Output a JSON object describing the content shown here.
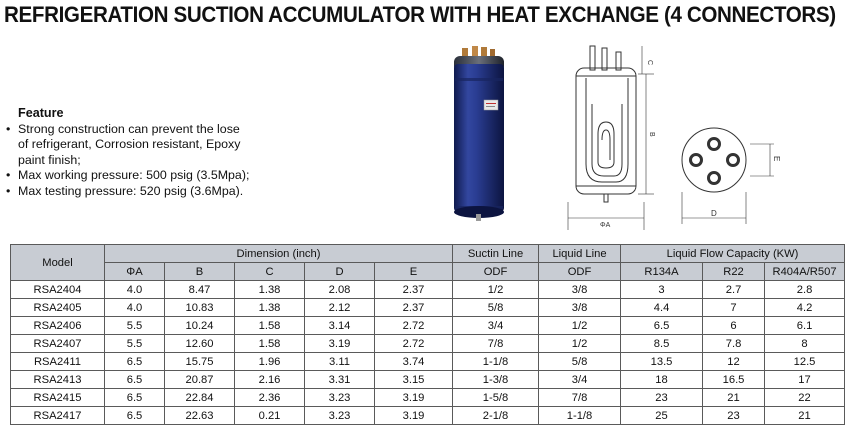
{
  "title": "REFRIGERATION SUCTION ACCUMULATOR WITH HEAT EXCHANGE (4 CONNECTORS)",
  "feature": {
    "heading": "Feature",
    "items": [
      {
        "lines": [
          "Strong construction can prevent the lose",
          "of refrigerant, Corrosion resistant, Epoxy",
          "paint finish;"
        ]
      },
      {
        "lines": [
          "Max working pressure: 500 psig (3.5Mpa);"
        ]
      },
      {
        "lines": [
          "Max testing pressure: 520 psig (3.6Mpa)."
        ]
      }
    ],
    "bullet": "•"
  },
  "drawing": {
    "labels": {
      "c": "C",
      "b": "B",
      "phi_a": "ΦA",
      "d": "D",
      "e": "E"
    }
  },
  "colors": {
    "header_bg": "#c8ccd3",
    "tank_blue": "#1e2f7a",
    "grid_line": "#5a5a5a"
  },
  "table": {
    "groups": {
      "model": "Model",
      "dimension": "Dimension (inch)",
      "suctin": "Suctin Line",
      "liquid": "Liquid Line",
      "capacity": "Liquid Flow Capacity (KW)"
    },
    "subheaders": [
      "ΦA",
      "B",
      "C",
      "D",
      "E",
      "ODF",
      "ODF",
      "R134A",
      "R22",
      "R404A/R507"
    ],
    "rows": [
      [
        "RSA2404",
        "4.0",
        "8.47",
        "1.38",
        "2.08",
        "2.37",
        "1/2",
        "3/8",
        "3",
        "2.7",
        "2.8"
      ],
      [
        "RSA2405",
        "4.0",
        "10.83",
        "1.38",
        "2.12",
        "2.37",
        "5/8",
        "3/8",
        "4.4",
        "7",
        "4.2"
      ],
      [
        "RSA2406",
        "5.5",
        "10.24",
        "1.58",
        "3.14",
        "2.72",
        "3/4",
        "1/2",
        "6.5",
        "6",
        "6.1"
      ],
      [
        "RSA2407",
        "5.5",
        "12.60",
        "1.58",
        "3.19",
        "2.72",
        "7/8",
        "1/2",
        "8.5",
        "7.8",
        "8"
      ],
      [
        "RSA2411",
        "6.5",
        "15.75",
        "1.96",
        "3.11",
        "3.74",
        "1-1/8",
        "5/8",
        "13.5",
        "12",
        "12.5"
      ],
      [
        "RSA2413",
        "6.5",
        "20.87",
        "2.16",
        "3.31",
        "3.15",
        "1-3/8",
        "3/4",
        "18",
        "16.5",
        "17"
      ],
      [
        "RSA2415",
        "6.5",
        "22.84",
        "2.36",
        "3.23",
        "3.19",
        "1-5/8",
        "7/8",
        "23",
        "21",
        "22"
      ],
      [
        "RSA2417",
        "6.5",
        "22.63",
        "0.21",
        "3.23",
        "3.19",
        "2-1/8",
        "1-1/8",
        "25",
        "23",
        "21"
      ]
    ]
  }
}
